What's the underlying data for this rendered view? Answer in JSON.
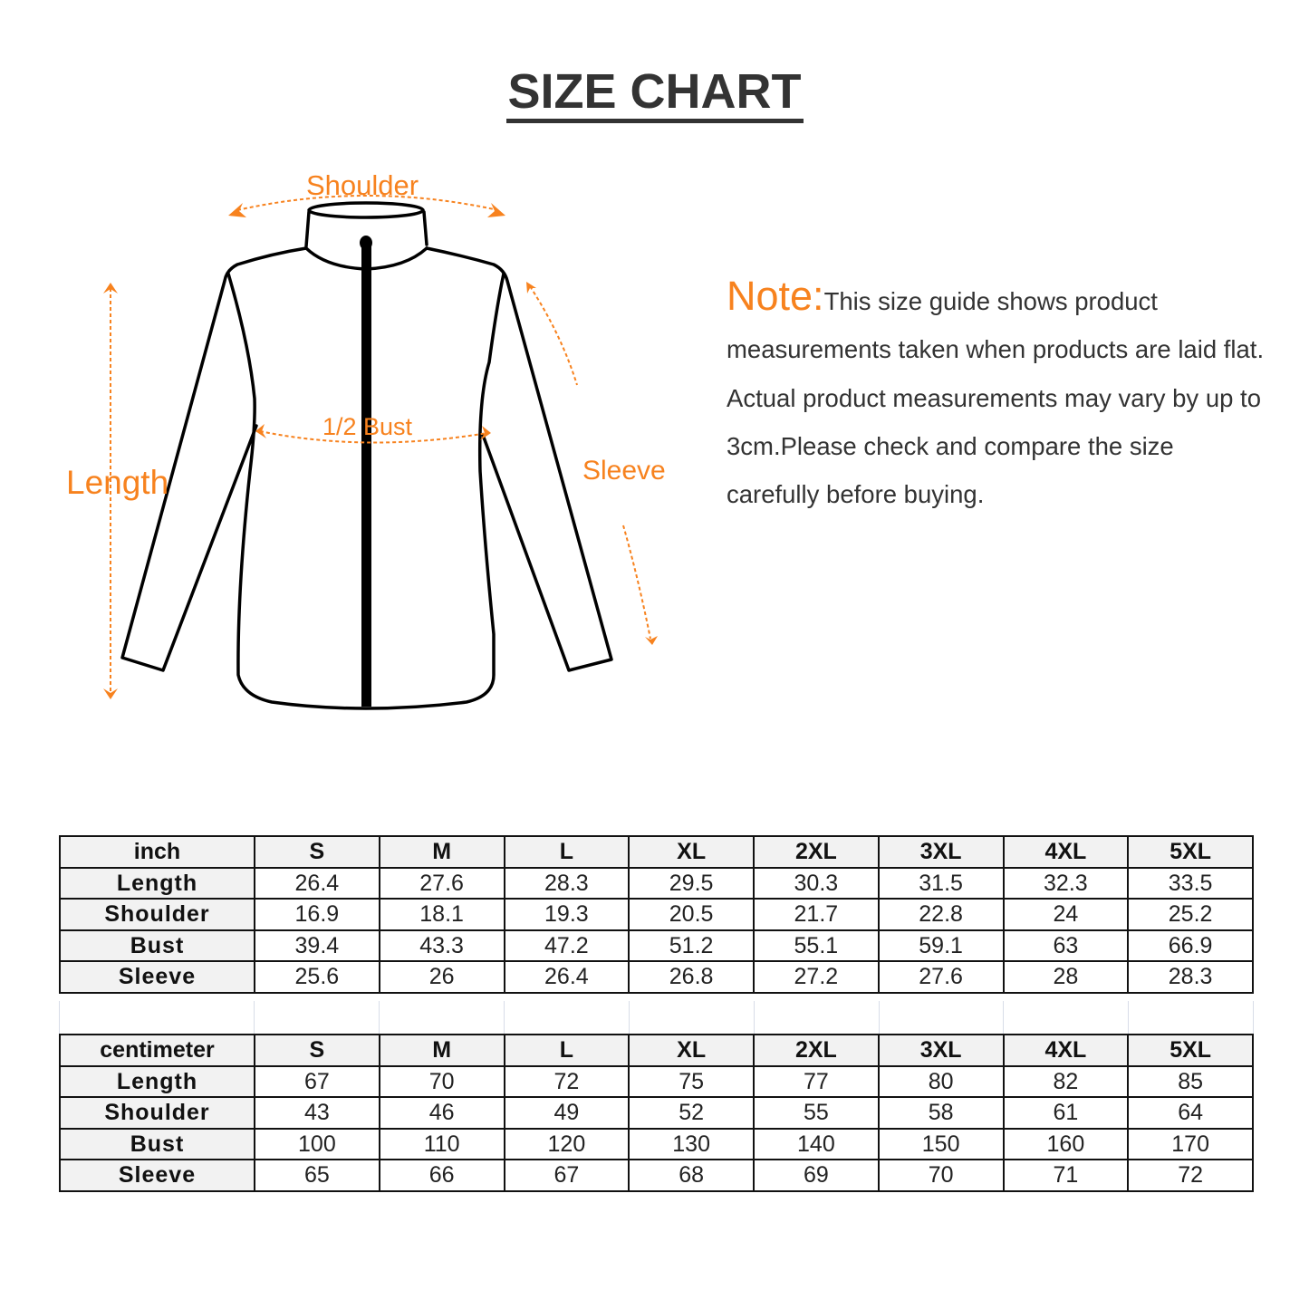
{
  "title": "SIZE CHART",
  "diagram": {
    "labels": {
      "shoulder": "Shoulder",
      "bust": "1/2 Bust",
      "length": "Length",
      "sleeve": "Sleeve"
    },
    "accent_color": "#f7821e"
  },
  "note": {
    "heading": "Note:",
    "text": "This size guide shows product measurements taken when products are laid flat. Actual product measurements may vary by up to 3cm.Please check and compare the size carefully before buying."
  },
  "sizes": [
    "S",
    "M",
    "L",
    "XL",
    "2XL",
    "3XL",
    "4XL",
    "5XL"
  ],
  "tables": [
    {
      "unit": "inch",
      "rows": [
        {
          "label": "Length",
          "values": [
            "26.4",
            "27.6",
            "28.3",
            "29.5",
            "30.3",
            "31.5",
            "32.3",
            "33.5"
          ]
        },
        {
          "label": "Shoulder",
          "values": [
            "16.9",
            "18.1",
            "19.3",
            "20.5",
            "21.7",
            "22.8",
            "24",
            "25.2"
          ]
        },
        {
          "label": "Bust",
          "values": [
            "39.4",
            "43.3",
            "47.2",
            "51.2",
            "55.1",
            "59.1",
            "63",
            "66.9"
          ]
        },
        {
          "label": "Sleeve",
          "values": [
            "25.6",
            "26",
            "26.4",
            "26.8",
            "27.2",
            "27.6",
            "28",
            "28.3"
          ]
        }
      ]
    },
    {
      "unit": "centimeter",
      "rows": [
        {
          "label": "Length",
          "values": [
            "67",
            "70",
            "72",
            "75",
            "77",
            "80",
            "82",
            "85"
          ]
        },
        {
          "label": "Shoulder",
          "values": [
            "43",
            "46",
            "49",
            "52",
            "55",
            "58",
            "61",
            "64"
          ]
        },
        {
          "label": "Bust",
          "values": [
            "100",
            "110",
            "120",
            "130",
            "140",
            "150",
            "160",
            "170"
          ]
        },
        {
          "label": "Sleeve",
          "values": [
            "65",
            "66",
            "67",
            "68",
            "69",
            "70",
            "71",
            "72"
          ]
        }
      ]
    }
  ]
}
